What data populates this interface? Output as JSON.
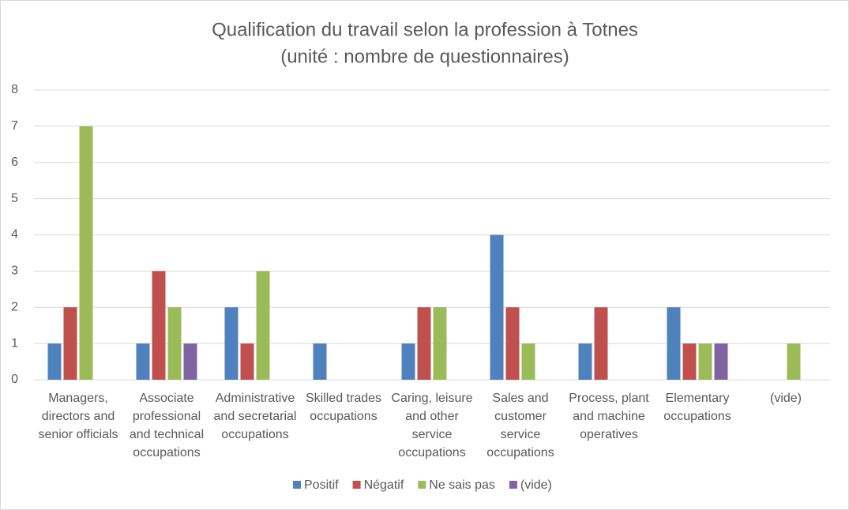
{
  "chart_data": {
    "type": "bar",
    "title": "Qualification du travail selon la profession à Totnes",
    "subtitle": "(unité : nombre de questionnaires)",
    "categories": [
      "Managers, directors and senior officials",
      "Associate professional and technical occupations",
      "Administrative and secretarial occupations",
      "Skilled trades occupations",
      "Caring, leisure and other service occupations",
      "Sales and customer service occupations",
      "Process, plant and machine operatives",
      "Elementary occupations",
      "(vide)"
    ],
    "series": [
      {
        "name": "Positif",
        "color": "#4f81bd",
        "values": [
          1,
          1,
          2,
          1,
          1,
          4,
          1,
          2,
          null
        ]
      },
      {
        "name": "Négatif",
        "color": "#c0504d",
        "values": [
          2,
          3,
          1,
          null,
          2,
          2,
          2,
          1,
          null
        ]
      },
      {
        "name": "Ne sais pas",
        "color": "#9bbb59",
        "values": [
          7,
          2,
          3,
          null,
          2,
          1,
          null,
          1,
          1
        ]
      },
      {
        "name": "(vide)",
        "color": "#8064a2",
        "values": [
          null,
          1,
          null,
          null,
          null,
          null,
          null,
          1,
          null
        ]
      }
    ],
    "ylim": [
      0,
      8
    ],
    "yticks": [
      0,
      1,
      2,
      3,
      4,
      5,
      6,
      7,
      8
    ],
    "grid": true,
    "legend": "bottom"
  }
}
